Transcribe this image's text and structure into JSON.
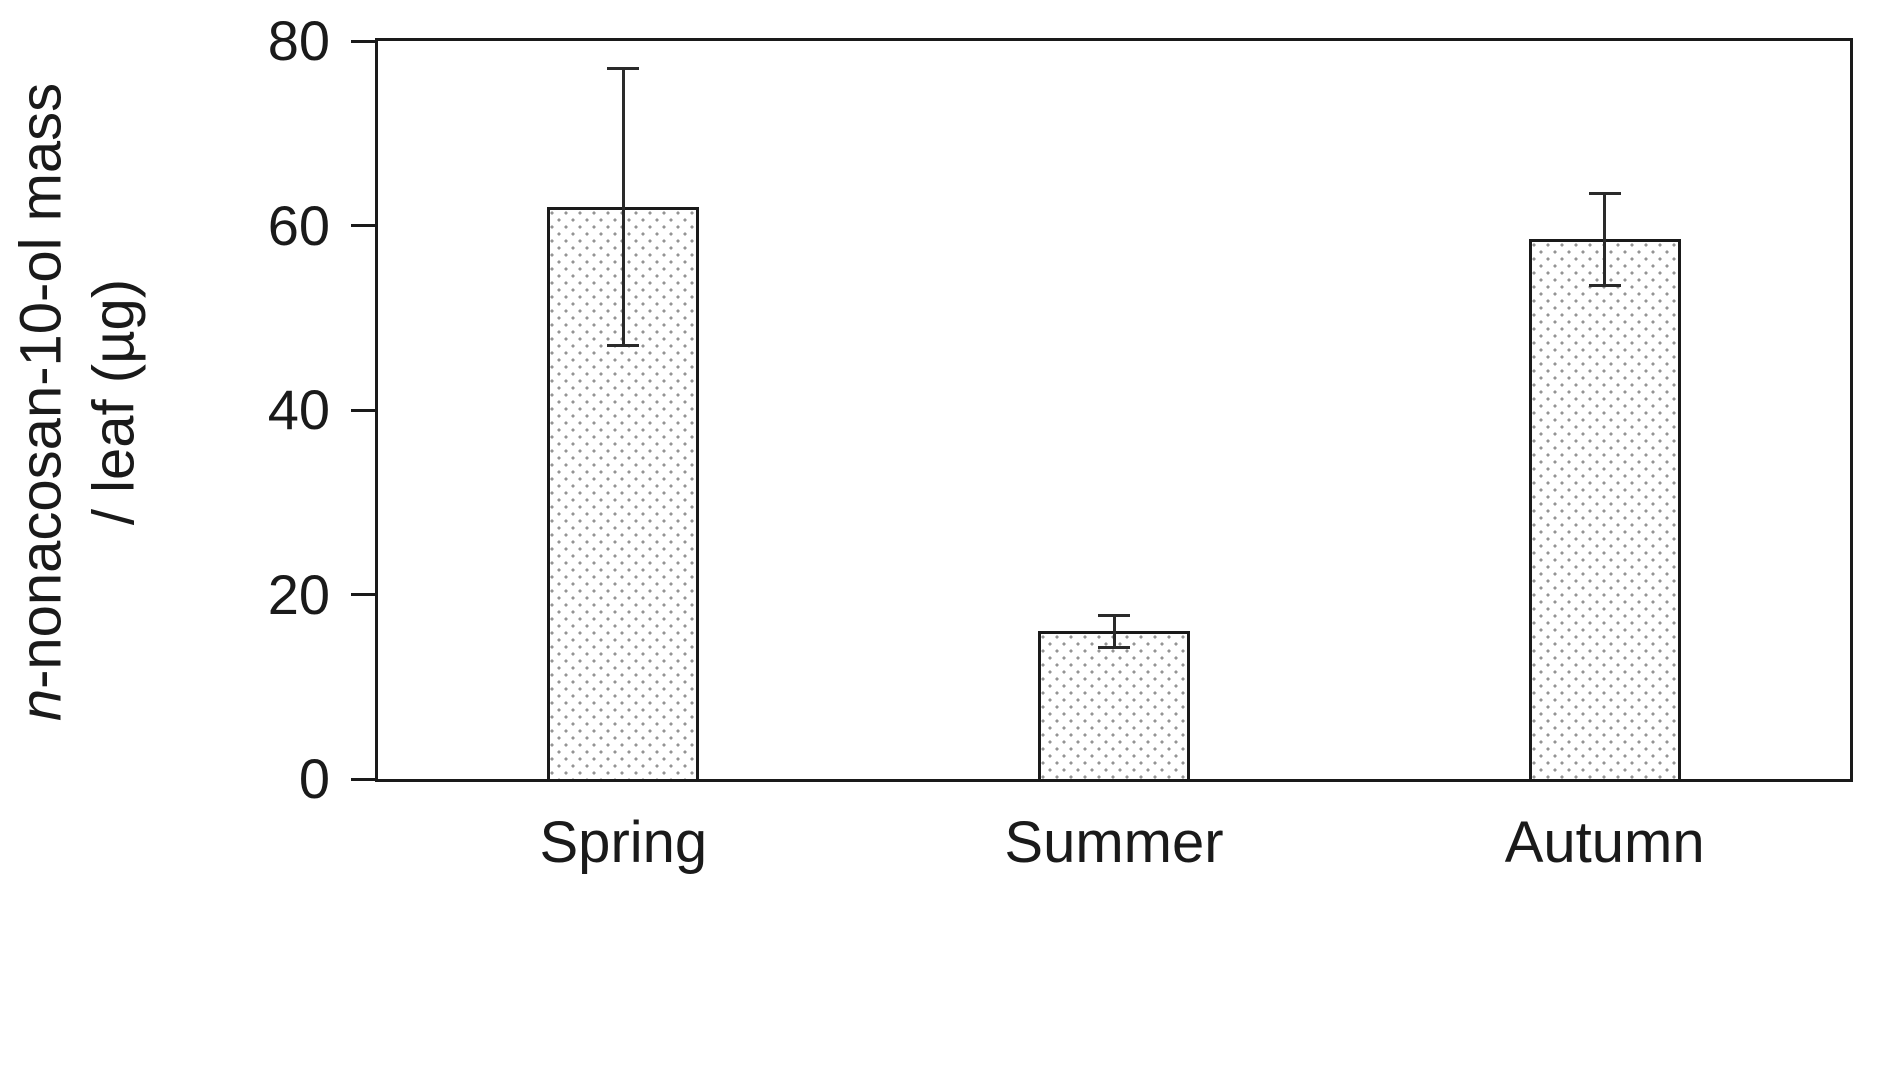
{
  "chart_data": {
    "type": "bar",
    "title": "",
    "categories": [
      "Spring",
      "Summer",
      "Autumn"
    ],
    "values": [
      62,
      16,
      58.5
    ],
    "errors": [
      15,
      1.7,
      5
    ],
    "xlabel": "",
    "ylabel": "n-nonacosan-10-ol mass / leaf (µg)",
    "ylabel_line1_italic": "n",
    "ylabel_line1_rest": "-nonacosan-10-ol mass",
    "ylabel_line2": "/ leaf (µg)",
    "ylim": [
      0,
      80
    ],
    "yticks": [
      0,
      20,
      40,
      60,
      80
    ],
    "grid": false,
    "legend": false,
    "bar_fill": "#ffffff",
    "bar_pattern_dot_color": "#949494",
    "bar_border_color": "#1a1a1a",
    "axis_color": "#1a1a1a",
    "background_color": "#ffffff"
  }
}
